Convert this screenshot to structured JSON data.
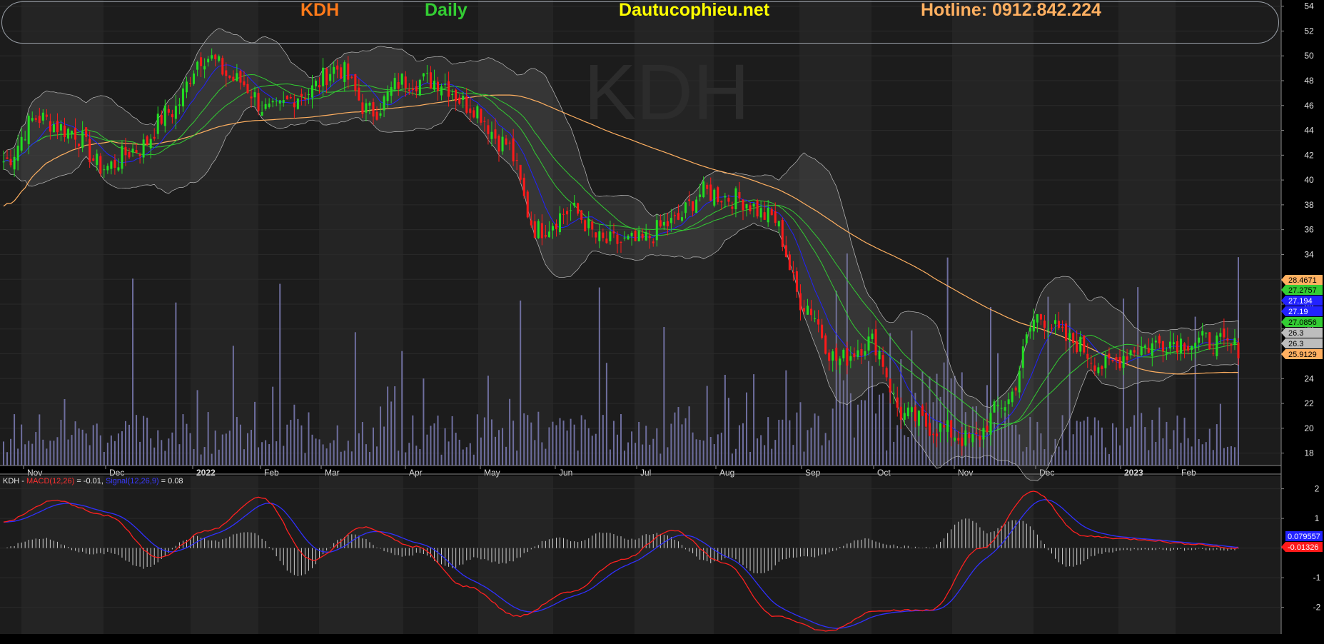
{
  "header": {
    "symbol": "KDH",
    "timeframe": "Daily",
    "website": "Dautucophieu.net",
    "hotline": "Hotline: 0912.842.224"
  },
  "watermark": "KDH",
  "macd_legend": {
    "symbol": "KDH",
    "sep": " - ",
    "macd_label": "MACD(12,26)",
    "macd_value": " = -0.01, ",
    "signal_label": "Signal(12,26,9)",
    "signal_value": " = 0.08"
  },
  "colors": {
    "background": "#000000",
    "panel": "#1a1a1a",
    "candle_up": "#22dd22",
    "candle_down": "#ff1a1a",
    "ma_slow": "#ffb061",
    "ma_fast": "#2222ff",
    "ma_green": "#33cc33",
    "bollinger": "#bdbdbd",
    "volume": "#6e6e9e",
    "macd": "#ff2020",
    "signal": "#3030ff"
  },
  "chart_data": [
    {
      "type": "candlestick",
      "y_axis_ticks": [
        18,
        20,
        22,
        24,
        26,
        28,
        30,
        32,
        34,
        36,
        38,
        40,
        42,
        44,
        46,
        48,
        50,
        52,
        54
      ],
      "ylim": [
        17,
        54.5
      ],
      "x_tick_labels": [
        "Nov",
        "Dec",
        "2022",
        "Feb",
        "Mar",
        "Apr",
        "May",
        "Jun",
        "Jul",
        "Aug",
        "Sep",
        "Oct",
        "Nov",
        "Dec",
        "2023",
        "Feb"
      ],
      "close_anchors": [
        [
          "Nov",
          41.5
        ],
        [
          "Nov",
          45
        ],
        [
          "Nov",
          44
        ],
        [
          "Dec",
          41
        ],
        [
          "Dec",
          42.5
        ],
        [
          "Dec",
          45.5
        ],
        [
          "2022",
          50
        ],
        [
          "2022",
          48
        ],
        [
          "Feb",
          45.5
        ],
        [
          "Feb",
          47
        ],
        [
          "Mar",
          49
        ],
        [
          "Mar",
          45.5
        ],
        [
          "Mar",
          48
        ],
        [
          "Apr",
          48
        ],
        [
          "Apr",
          46
        ],
        [
          "May",
          43
        ],
        [
          "May",
          36
        ],
        [
          "Jun",
          37.5
        ],
        [
          "Jun",
          35
        ],
        [
          "Jul",
          35
        ],
        [
          "Jul",
          36.5
        ],
        [
          "Aug",
          39
        ],
        [
          "Aug",
          38.5
        ],
        [
          "Sep",
          37
        ],
        [
          "Sep",
          30
        ],
        [
          "Oct",
          25.5
        ],
        [
          "Oct",
          27
        ],
        [
          "Nov",
          21
        ],
        [
          "Nov",
          20
        ],
        [
          "Nov",
          19
        ],
        [
          "Dec",
          22
        ],
        [
          "Dec",
          29
        ],
        [
          "Dec",
          27
        ],
        [
          "Dec",
          25
        ],
        [
          "2023",
          26.5
        ],
        [
          "2023",
          27
        ],
        [
          "Feb",
          27
        ],
        [
          "Feb",
          26.5
        ]
      ],
      "last_price_labels": [
        {
          "value": "28.4671",
          "color": "#ffb061"
        },
        {
          "value": "27.2757",
          "color": "#33cc33"
        },
        {
          "value": "27.194",
          "color": "#2222ff"
        },
        {
          "value": "27.19",
          "color": "#2222ff"
        },
        {
          "value": "27.0856",
          "color": "#33cc33"
        },
        {
          "value": "26.3",
          "color": "#bdbdbd"
        },
        {
          "value": "26.3",
          "color": "#bdbdbd"
        },
        {
          "value": "25.9129",
          "color": "#ffb061"
        }
      ],
      "indicators": [
        "Bollinger Bands",
        "MA (orange)",
        "MA (blue)",
        "MA (green x2)",
        "Volume"
      ]
    },
    {
      "type": "line",
      "title": "KDH - MACD(12,26) = -0.01, Signal(12,26,9) = 0.08",
      "y_axis_ticks": [
        -2,
        -1,
        0,
        1,
        2
      ],
      "ylim": [
        -2.9,
        2.4
      ],
      "series": [
        {
          "name": "MACD(12,26)",
          "anchors": [
            0.9,
            1.6,
            1.1,
            -0.3,
            0.6,
            1.7,
            -0.4,
            0.7,
            0.05,
            -1.3,
            -2.3,
            -1.5,
            -0.4,
            0.6,
            -0.5,
            -2.3,
            -2.8,
            -2.1,
            -2.1,
            0.0,
            1.9,
            0.4,
            0.3,
            0.15,
            -0.01
          ],
          "last": "-0.01326"
        },
        {
          "name": "Signal(12,26,9)",
          "last": "0.079557"
        }
      ],
      "histogram": true
    }
  ]
}
